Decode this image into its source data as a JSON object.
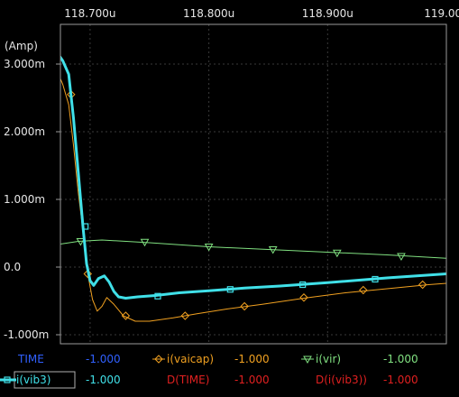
{
  "chart_data": {
    "type": "line",
    "ylabel": "(Amp)",
    "xlim": [
      118.675,
      119.0
    ],
    "ylim": [
      -1.0,
      3.0
    ],
    "grid": true,
    "x_ticks": [
      {
        "value": 118.7,
        "label": "118.700u"
      },
      {
        "value": 118.8,
        "label": "118.800u"
      },
      {
        "value": 118.9,
        "label": "118.900u"
      },
      {
        "value": 119.0,
        "label": "119.000"
      }
    ],
    "y_ticks": [
      {
        "value": 3.0,
        "label": "3.000m"
      },
      {
        "value": 2.0,
        "label": "2.000m"
      },
      {
        "value": 1.0,
        "label": "1.000m"
      },
      {
        "value": 0.0,
        "label": "0.0"
      },
      {
        "value": -1.0,
        "label": "-1.000m"
      }
    ],
    "series": [
      {
        "name": "i(vaicap)",
        "color": "#f0a020",
        "marker": "diamond",
        "thick": false,
        "x": [
          118.671,
          118.677,
          118.682,
          118.686,
          118.69,
          118.695,
          118.698,
          118.702,
          118.706,
          118.71,
          118.714,
          118.72,
          118.728,
          118.738,
          118.75,
          118.77,
          118.79,
          118.815,
          118.845,
          118.88,
          118.915,
          118.95,
          118.985,
          119.0
        ],
        "y": [
          2.95,
          2.7,
          2.4,
          1.8,
          1.1,
          0.4,
          -0.1,
          -0.48,
          -0.65,
          -0.58,
          -0.45,
          -0.55,
          -0.72,
          -0.8,
          -0.8,
          -0.75,
          -0.69,
          -0.62,
          -0.55,
          -0.46,
          -0.38,
          -0.32,
          -0.26,
          -0.24
        ],
        "marker_x": [
          118.684,
          118.698,
          118.73,
          118.78,
          118.83,
          118.88,
          118.93,
          118.98
        ],
        "marker_y": [
          2.55,
          -0.1,
          -0.72,
          -0.72,
          -0.58,
          -0.45,
          -0.34,
          -0.26
        ]
      },
      {
        "name": "i(vir)",
        "color": "#80e080",
        "marker": "triangle",
        "thick": false,
        "x": [
          118.671,
          118.69,
          118.71,
          118.75,
          118.8,
          118.85,
          118.9,
          118.95,
          119.0
        ],
        "y": [
          0.33,
          0.38,
          0.4,
          0.36,
          0.3,
          0.26,
          0.22,
          0.18,
          0.13
        ],
        "marker_x": [
          118.692,
          118.746,
          118.8,
          118.854,
          118.908,
          118.962
        ],
        "marker_y": [
          0.38,
          0.37,
          0.3,
          0.26,
          0.21,
          0.16
        ]
      },
      {
        "name": "i(vib3)",
        "color": "#40e0e8",
        "marker": "square",
        "thick": true,
        "x": [
          118.671,
          118.677,
          118.682,
          118.686,
          118.69,
          118.694,
          118.697,
          118.7,
          118.703,
          118.707,
          118.712,
          118.716,
          118.72,
          118.724,
          118.73,
          118.74,
          118.755,
          118.775,
          118.8,
          118.83,
          118.86,
          118.9,
          118.95,
          119.0
        ],
        "y": [
          3.2,
          3.05,
          2.85,
          2.2,
          1.4,
          0.6,
          0.05,
          -0.2,
          -0.27,
          -0.17,
          -0.13,
          -0.22,
          -0.36,
          -0.44,
          -0.46,
          -0.44,
          -0.42,
          -0.38,
          -0.35,
          -0.31,
          -0.28,
          -0.23,
          -0.16,
          -0.1
        ],
        "marker_x": [
          118.696,
          118.757,
          118.818,
          118.879,
          118.94
        ],
        "marker_y": [
          0.6,
          -0.43,
          -0.33,
          -0.26,
          -0.18
        ]
      }
    ],
    "legend": [
      [
        {
          "label": "TIME",
          "value": "-1.000",
          "label_color": "#3060ff",
          "value_color": "#3060ff",
          "marker": "none",
          "boxed": false
        },
        {
          "label": "i(vaicap)",
          "value": "-1.000",
          "label_color": "#f0a020",
          "value_color": "#f0a020",
          "marker": "diamond",
          "marker_color": "#f0a020",
          "boxed": false
        },
        {
          "label": "i(vir)",
          "value": "-1.000",
          "label_color": "#80e080",
          "value_color": "#80e080",
          "marker": "triangle",
          "marker_color": "#80e080",
          "boxed": false
        }
      ],
      [
        {
          "label": "i(vib3)",
          "value": "-1.000",
          "label_color": "#40e0e8",
          "value_color": "#40e0e8",
          "marker": "square",
          "marker_color": "#40e0e8",
          "boxed": true
        },
        {
          "label": "D(TIME)",
          "value": "-1.000",
          "label_color": "#e02020",
          "value_color": "#e02020",
          "marker": "none",
          "boxed": false
        },
        {
          "label": "D(i(vib3))",
          "value": "-1.000",
          "label_color": "#e02020",
          "value_color": "#e02020",
          "marker": "none",
          "boxed": false
        }
      ]
    ]
  },
  "colors": {
    "background": "#000000",
    "frame": "#9a9a9a",
    "grid": "#3a3a3a",
    "tick_text": "#e6e6e6"
  }
}
